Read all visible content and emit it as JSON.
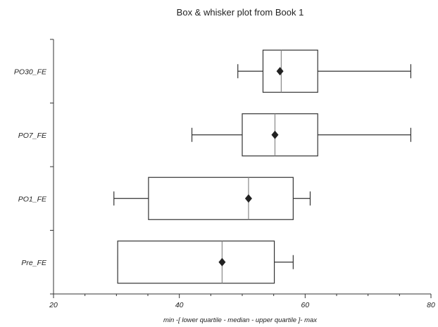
{
  "chart_data": {
    "type": "boxplot",
    "title": "Box & whisker plot from Book 1",
    "xlabel": "min -[ lower quartile - median - upper quartile ]- max",
    "ylabel": "",
    "xlim": [
      20,
      80
    ],
    "xticks": [
      20,
      40,
      60,
      80
    ],
    "orientation": "horizontal",
    "grid": false,
    "categories": [
      "PO30_FE",
      "PO7_FE",
      "PO1_FE",
      "Pre_FE"
    ],
    "series": [
      {
        "category": "PO30_FE",
        "min": 49.3,
        "q1": 53.3,
        "median": 56.2,
        "q3": 62.0,
        "max": 76.8,
        "mean": 56.0
      },
      {
        "category": "PO7_FE",
        "min": 42.0,
        "q1": 50.0,
        "median": 55.2,
        "q3": 62.0,
        "max": 76.8,
        "mean": 55.2
      },
      {
        "category": "PO1_FE",
        "min": 29.6,
        "q1": 35.1,
        "median": 51.0,
        "q3": 58.1,
        "max": 60.8,
        "mean": 51.0
      },
      {
        "category": "Pre_FE",
        "min": 30.2,
        "q1": 30.2,
        "median": 46.8,
        "q3": 55.1,
        "max": 58.1,
        "mean": 46.8
      }
    ]
  }
}
